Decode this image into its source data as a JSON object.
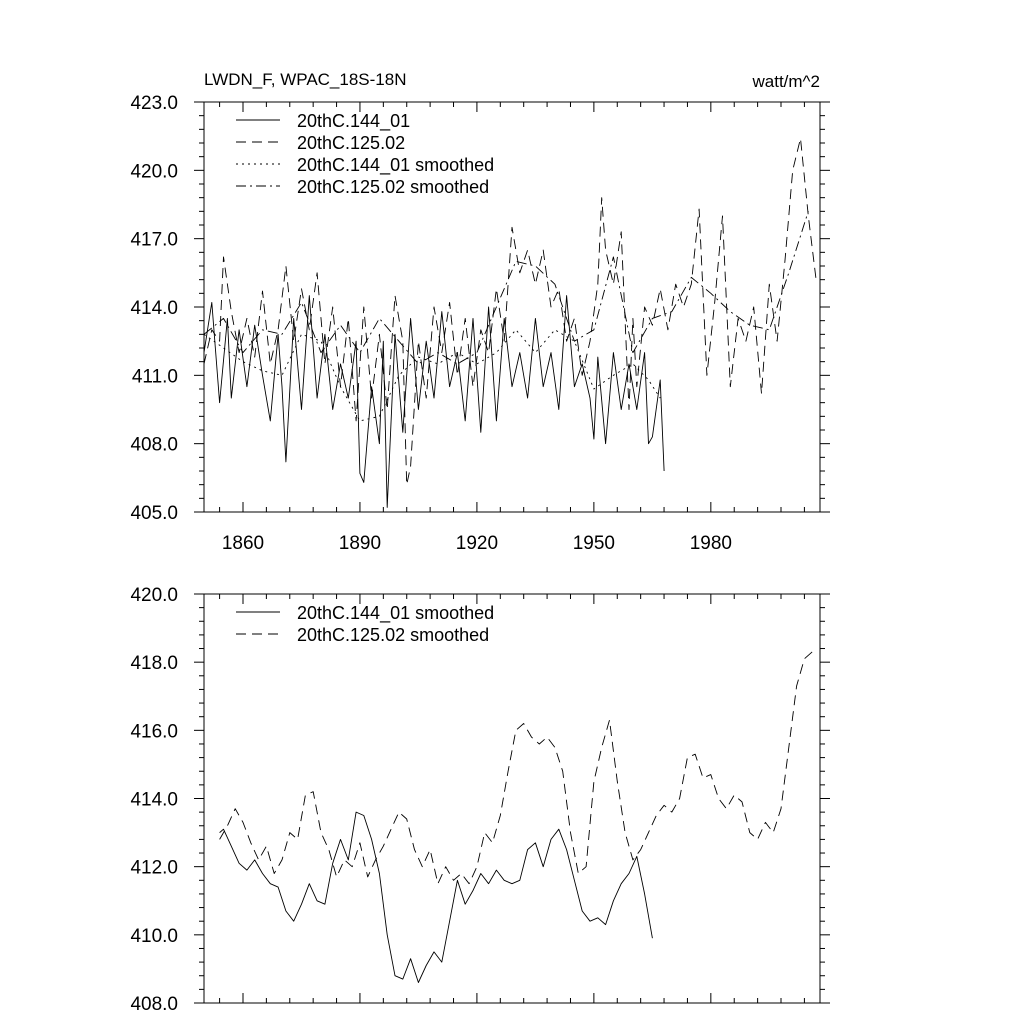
{
  "chart_data": [
    {
      "type": "line",
      "title": "LWDN_F, WPAC_18S-18N",
      "units": "watt/m^2",
      "xlim": [
        1850,
        2008
      ],
      "ylim": [
        405.0,
        423.0
      ],
      "xticks": [
        1860,
        1890,
        1920,
        1950,
        1980
      ],
      "xtick_labels": [
        "1860",
        "1890",
        "1920",
        "1950",
        "1980"
      ],
      "yticks": [
        405.0,
        408.0,
        411.0,
        414.0,
        417.0,
        420.0,
        423.0
      ],
      "ytick_labels": [
        "405.0",
        "408.0",
        "411.0",
        "414.0",
        "417.0",
        "420.0",
        "423.0"
      ],
      "legend_position": "top-left",
      "series": [
        {
          "name": "20thC.144_01",
          "style": "solid",
          "x": [
            1850,
            1852,
            1854,
            1856,
            1857,
            1859,
            1861,
            1863,
            1865,
            1867,
            1869,
            1870,
            1871,
            1873,
            1875,
            1877,
            1879,
            1881,
            1883,
            1885,
            1887,
            1889,
            1890,
            1891,
            1893,
            1895,
            1896,
            1897,
            1899,
            1901,
            1903,
            1905,
            1907,
            1909,
            1911,
            1913,
            1915,
            1917,
            1919,
            1921,
            1923,
            1925,
            1927,
            1929,
            1931,
            1933,
            1935,
            1937,
            1939,
            1941,
            1943,
            1945,
            1947,
            1949,
            1950,
            1951,
            1953,
            1955,
            1957,
            1959,
            1961,
            1963,
            1964,
            1965,
            1967,
            1968
          ],
          "y": [
            412.0,
            414.2,
            409.8,
            413.5,
            410.0,
            413.0,
            410.5,
            413.2,
            411.0,
            409.0,
            412.8,
            410.5,
            407.2,
            413.5,
            409.5,
            414.5,
            410.0,
            412.8,
            409.5,
            411.5,
            410.0,
            412.5,
            406.7,
            406.3,
            410.5,
            408.0,
            412.5,
            405.2,
            412.8,
            408.5,
            413.5,
            409.5,
            412.5,
            410.0,
            413.8,
            410.5,
            412.0,
            409.0,
            413.5,
            408.5,
            414.0,
            409.0,
            413.5,
            410.5,
            412.0,
            410.0,
            413.5,
            410.5,
            412.0,
            409.5,
            414.5,
            410.5,
            411.5,
            410.0,
            408.2,
            411.8,
            408.0,
            412.0,
            409.5,
            411.5,
            409.5,
            412.0,
            408.0,
            408.3,
            410.8,
            406.8
          ]
        },
        {
          "name": "20thC.125.02",
          "style": "dashed",
          "x": [
            1850,
            1852,
            1854,
            1855,
            1857,
            1859,
            1861,
            1863,
            1865,
            1867,
            1869,
            1871,
            1873,
            1875,
            1877,
            1879,
            1881,
            1883,
            1885,
            1887,
            1889,
            1891,
            1893,
            1895,
            1897,
            1899,
            1901,
            1902,
            1903,
            1905,
            1907,
            1909,
            1911,
            1913,
            1915,
            1917,
            1919,
            1921,
            1923,
            1925,
            1927,
            1929,
            1931,
            1933,
            1935,
            1937,
            1939,
            1941,
            1943,
            1945,
            1947,
            1949,
            1951,
            1952,
            1953,
            1955,
            1957,
            1959,
            1960,
            1961,
            1963,
            1965,
            1967,
            1969,
            1971,
            1973,
            1975,
            1977,
            1979,
            1981,
            1983,
            1985,
            1987,
            1989,
            1991,
            1993,
            1995,
            1997,
            1999,
            2001,
            2003,
            2005,
            2007
          ],
          "y": [
            411.5,
            413.0,
            412.5,
            416.2,
            413.8,
            412.0,
            413.5,
            411.8,
            414.7,
            411.5,
            413.0,
            415.8,
            412.5,
            414.8,
            413.0,
            415.5,
            411.5,
            414.0,
            410.5,
            413.5,
            409.0,
            414.0,
            410.0,
            412.8,
            409.5,
            414.5,
            412.5,
            406.2,
            407.0,
            412.5,
            410.0,
            414.0,
            412.0,
            414.2,
            411.0,
            413.5,
            410.5,
            413.0,
            412.0,
            414.8,
            412.5,
            417.5,
            415.5,
            416.5,
            415.0,
            416.5,
            414.0,
            414.8,
            412.5,
            413.5,
            411.0,
            412.5,
            415.0,
            418.8,
            416.5,
            415.0,
            417.3,
            409.5,
            413.5,
            410.5,
            414.0,
            413.2,
            414.8,
            413.0,
            415.0,
            414.0,
            415.0,
            418.3,
            411.0,
            414.2,
            418.0,
            410.5,
            413.5,
            412.5,
            414.0,
            410.2,
            415.0,
            412.5,
            416.0,
            420.0,
            421.4,
            418.0,
            415.2
          ]
        },
        {
          "name": "20thC.144_01 smoothed",
          "style": "dotted",
          "x": [
            1850,
            1855,
            1860,
            1865,
            1870,
            1875,
            1880,
            1885,
            1890,
            1895,
            1900,
            1905,
            1910,
            1915,
            1920,
            1925,
            1930,
            1935,
            1940,
            1945,
            1950,
            1955,
            1960,
            1964,
            1967
          ],
          "y": [
            412.8,
            412.2,
            411.6,
            411.2,
            411.0,
            412.8,
            412.5,
            410.5,
            409.0,
            409.2,
            411.0,
            411.8,
            411.5,
            412.0,
            411.5,
            412.0,
            413.0,
            412.0,
            413.0,
            412.5,
            410.4,
            411.0,
            411.5,
            410.8,
            410.0
          ]
        },
        {
          "name": "20thC.125.02 smoothed",
          "style": "dashdot",
          "x": [
            1850,
            1855,
            1860,
            1865,
            1870,
            1875,
            1880,
            1885,
            1890,
            1895,
            1900,
            1905,
            1910,
            1915,
            1920,
            1925,
            1930,
            1935,
            1940,
            1945,
            1950,
            1955,
            1960,
            1965,
            1970,
            1975,
            1980,
            1985,
            1990,
            1995,
            2000,
            2005
          ],
          "y": [
            412.8,
            413.5,
            412.0,
            413.0,
            412.8,
            414.2,
            412.0,
            413.2,
            412.0,
            413.5,
            412.5,
            411.5,
            412.0,
            411.5,
            412.0,
            414.0,
            416.0,
            415.8,
            415.0,
            412.5,
            413.0,
            416.2,
            412.0,
            413.5,
            413.8,
            415.3,
            414.6,
            413.8,
            413.2,
            413.0,
            415.5,
            418.2
          ]
        }
      ]
    },
    {
      "type": "line",
      "title": "",
      "xlim": [
        1850,
        2008
      ],
      "ylim": [
        408.0,
        420.0
      ],
      "xticks": [
        1860,
        1890,
        1920,
        1950,
        1980
      ],
      "yticks": [
        408.0,
        410.0,
        412.0,
        414.0,
        416.0,
        418.0,
        420.0
      ],
      "ytick_labels": [
        "408.0",
        "410.0",
        "412.0",
        "414.0",
        "416.0",
        "418.0",
        "420.0"
      ],
      "legend_position": "top-left",
      "series": [
        {
          "name": "20thC.144_01 smoothed",
          "style": "solid",
          "x": [
            1854,
            1855,
            1857,
            1859,
            1861,
            1863,
            1865,
            1867,
            1869,
            1871,
            1873,
            1875,
            1877,
            1879,
            1881,
            1883,
            1885,
            1887,
            1889,
            1891,
            1893,
            1895,
            1897,
            1899,
            1901,
            1903,
            1905,
            1907,
            1909,
            1911,
            1913,
            1915,
            1917,
            1919,
            1921,
            1923,
            1925,
            1927,
            1929,
            1931,
            1933,
            1935,
            1937,
            1939,
            1941,
            1943,
            1945,
            1947,
            1949,
            1951,
            1953,
            1955,
            1957,
            1959,
            1961,
            1963,
            1965
          ],
          "y": [
            413.0,
            413.1,
            412.6,
            412.1,
            411.9,
            412.2,
            411.8,
            411.5,
            411.4,
            410.7,
            410.4,
            410.9,
            411.5,
            411.0,
            410.9,
            412.1,
            412.8,
            412.2,
            413.6,
            413.5,
            412.8,
            411.8,
            410.0,
            408.8,
            408.7,
            409.3,
            408.6,
            409.1,
            409.5,
            409.2,
            410.4,
            411.6,
            410.9,
            411.3,
            411.8,
            411.5,
            411.9,
            411.6,
            411.5,
            411.6,
            412.5,
            412.7,
            412.0,
            412.8,
            413.1,
            412.5,
            411.6,
            410.7,
            410.4,
            410.5,
            410.3,
            411.0,
            411.5,
            411.8,
            412.3,
            411.2,
            409.9
          ]
        },
        {
          "name": "20thC.125.02 smoothed",
          "style": "dashed",
          "x": [
            1854,
            1856,
            1858,
            1860,
            1862,
            1864,
            1866,
            1868,
            1870,
            1872,
            1874,
            1876,
            1878,
            1880,
            1882,
            1884,
            1886,
            1888,
            1890,
            1892,
            1894,
            1896,
            1898,
            1900,
            1902,
            1904,
            1906,
            1908,
            1910,
            1912,
            1914,
            1916,
            1918,
            1920,
            1922,
            1924,
            1926,
            1928,
            1930,
            1932,
            1934,
            1936,
            1938,
            1940,
            1942,
            1944,
            1946,
            1948,
            1950,
            1952,
            1954,
            1956,
            1958,
            1960,
            1962,
            1964,
            1966,
            1968,
            1970,
            1972,
            1974,
            1976,
            1978,
            1980,
            1982,
            1984,
            1986,
            1988,
            1990,
            1992,
            1994,
            1996,
            1998,
            2000,
            2002,
            2004,
            2006
          ],
          "y": [
            412.8,
            413.2,
            413.7,
            413.3,
            412.7,
            412.2,
            412.6,
            411.8,
            412.2,
            413.0,
            412.8,
            414.1,
            414.2,
            413.0,
            412.5,
            411.7,
            412.2,
            412.0,
            412.7,
            411.7,
            412.2,
            412.6,
            413.1,
            413.6,
            413.4,
            412.5,
            412.0,
            412.5,
            411.5,
            412.0,
            411.6,
            411.8,
            411.5,
            412.0,
            413.0,
            412.7,
            413.5,
            414.8,
            416.0,
            416.2,
            415.8,
            415.6,
            415.8,
            415.5,
            414.8,
            413.0,
            411.8,
            412.0,
            414.5,
            415.5,
            416.3,
            414.5,
            413.0,
            412.2,
            412.5,
            413.0,
            413.5,
            413.8,
            413.6,
            414.0,
            415.2,
            415.3,
            414.6,
            414.7,
            414.0,
            413.7,
            414.1,
            413.9,
            413.0,
            412.8,
            413.3,
            413.0,
            413.7,
            415.5,
            417.3,
            418.1,
            418.3
          ]
        }
      ]
    }
  ]
}
